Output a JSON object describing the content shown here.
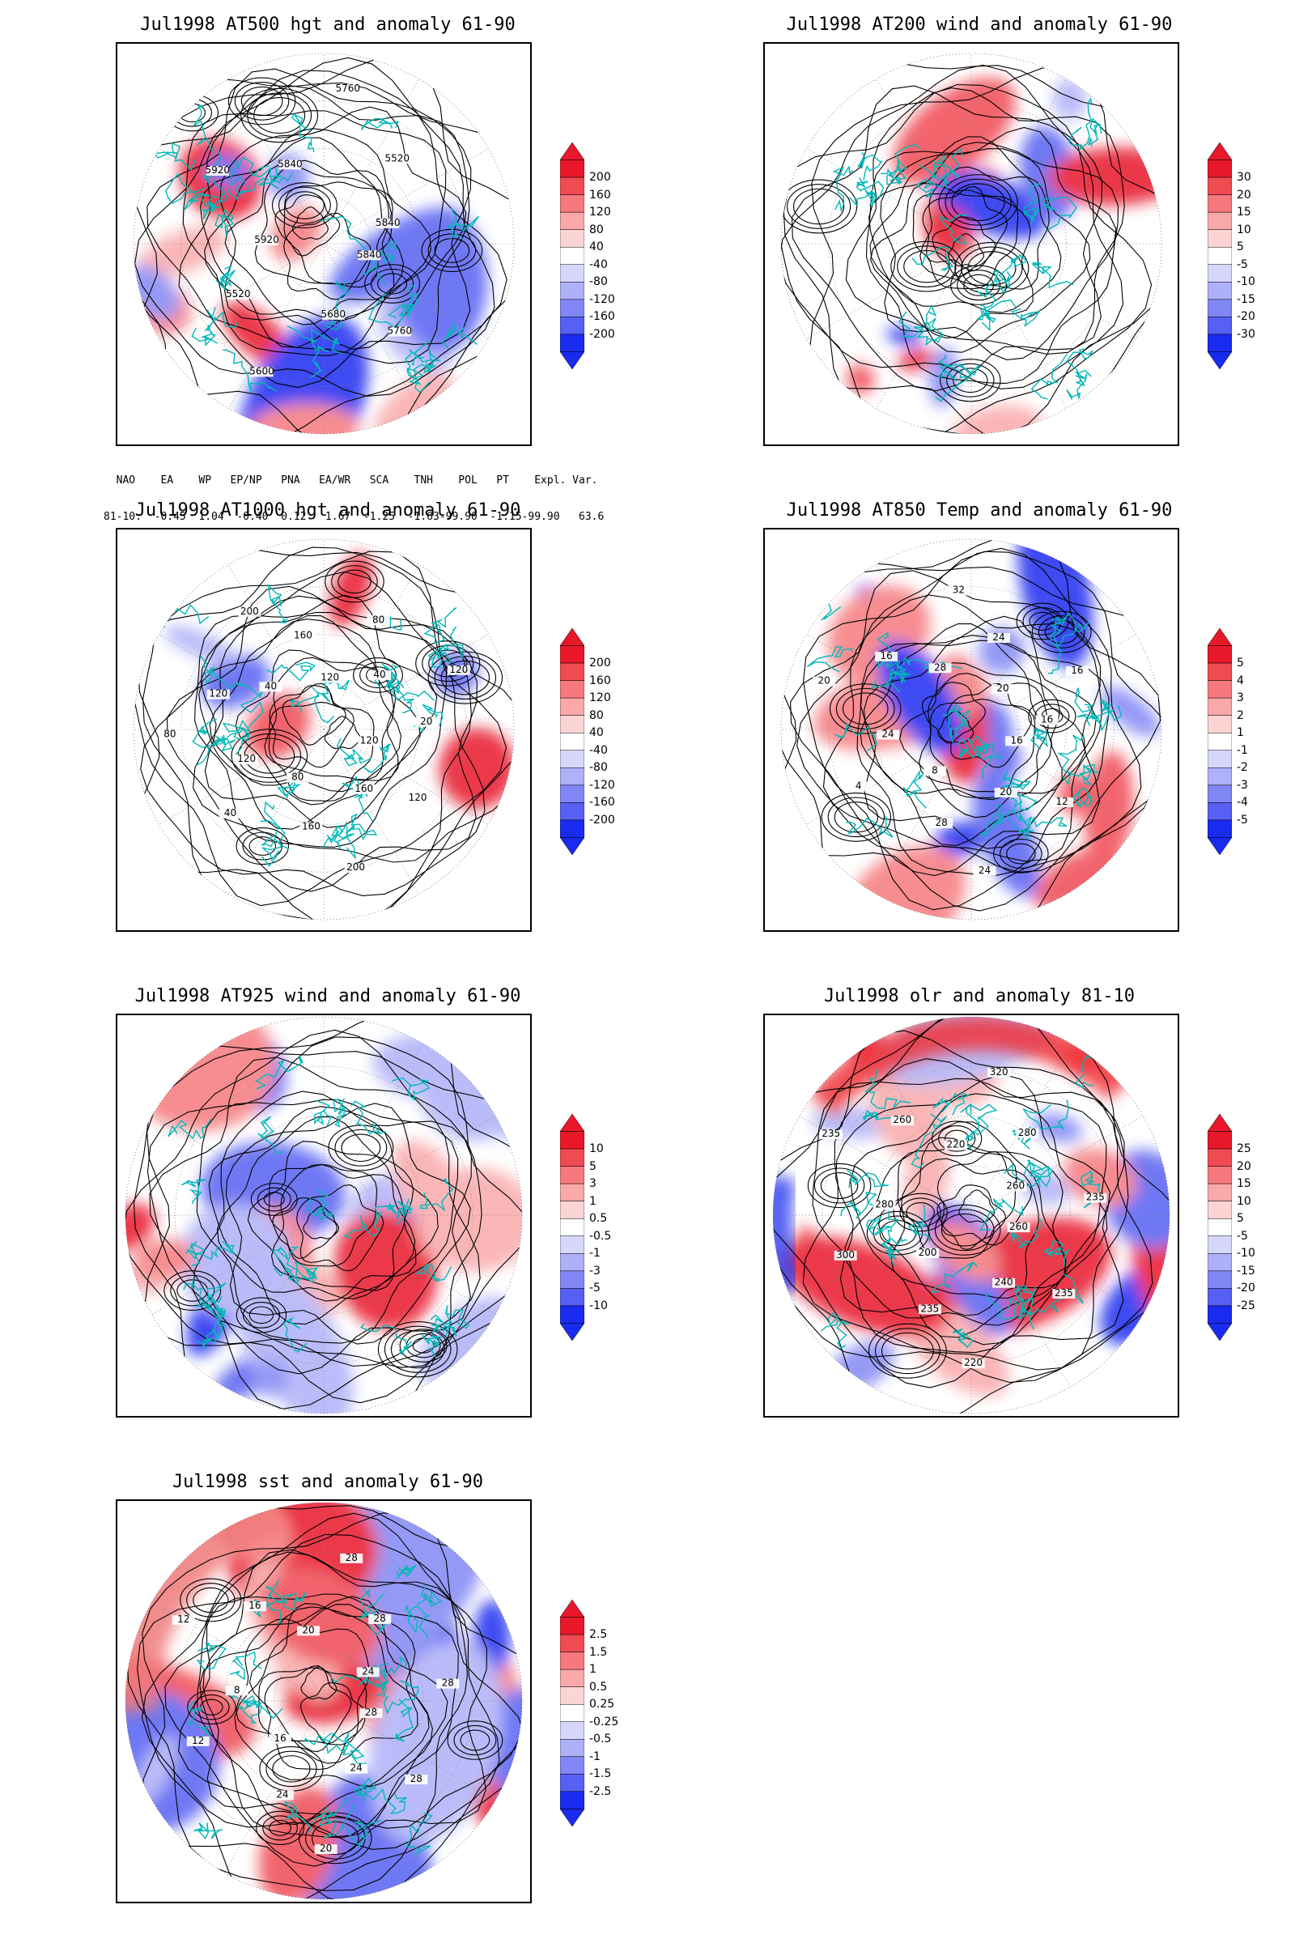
{
  "panels": [
    {
      "id": "p1",
      "title": "Jul1998 AT500 hgt and anomaly 61-90",
      "colorbar": [
        "200",
        "160",
        "120",
        "80",
        "40",
        "-40",
        "-80",
        "-120",
        "-160",
        "-200"
      ],
      "contour_labels": [
        "5840",
        "5760",
        "5680",
        "5600",
        "5520",
        "5920",
        "5920",
        "5840",
        "5760",
        "5520",
        "5840"
      ]
    },
    {
      "id": "p2",
      "title": "Jul1998 AT200 wind and anomaly 61-90",
      "colorbar": [
        "30",
        "20",
        "15",
        "10",
        "5",
        "-5",
        "-10",
        "-15",
        "-20",
        "-30"
      ],
      "contour_labels": []
    },
    {
      "id": "p3",
      "title": "Jul1998 AT1000 hgt and anomaly 61-90",
      "colorbar": [
        "200",
        "160",
        "120",
        "80",
        "40",
        "-40",
        "-80",
        "-120",
        "-160",
        "-200"
      ],
      "contour_labels": [
        "120",
        "120",
        "160",
        "200",
        "160",
        "80",
        "40",
        "120",
        "80",
        "120",
        "40",
        "200",
        "160",
        "120",
        "80",
        "40",
        "120",
        "20"
      ]
    },
    {
      "id": "p4",
      "title": "Jul1998 AT850 Temp and anomaly 61-90",
      "colorbar": [
        "5",
        "4",
        "3",
        "2",
        "1",
        "-1",
        "-2",
        "-3",
        "-4",
        "-5"
      ],
      "contour_labels": [
        "16",
        "12",
        "20",
        "24",
        "28",
        "8",
        "4",
        "24",
        "20",
        "16",
        "28",
        "32",
        "24",
        "20",
        "16",
        "16"
      ]
    },
    {
      "id": "p5",
      "title": "Jul1998 AT925 wind and anomaly 61-90",
      "colorbar": [
        "10",
        "5",
        "3",
        "1",
        "0.5",
        "-0.5",
        "-1",
        "-3",
        "-5",
        "-10"
      ],
      "contour_labels": []
    },
    {
      "id": "p6",
      "title": "Jul1998 olr and anomaly 81-10",
      "colorbar": [
        "25",
        "20",
        "15",
        "10",
        "5",
        "-5",
        "-10",
        "-15",
        "-20",
        "-25"
      ],
      "contour_labels": [
        "260",
        "235",
        "240",
        "220",
        "235",
        "200",
        "300",
        "280",
        "235",
        "260",
        "220",
        "320",
        "280",
        "260",
        "235"
      ]
    },
    {
      "id": "p7",
      "title": "Jul1998 sst and anomaly 61-90",
      "colorbar": [
        "2.5",
        "1.5",
        "1",
        "0.5",
        "0.25",
        "-0.25",
        "-0.5",
        "-1",
        "-1.5",
        "-2.5"
      ],
      "contour_labels": [
        "28",
        "28",
        "24",
        "20",
        "24",
        "16",
        "12",
        "8",
        "12",
        "16",
        "20",
        "28",
        "28",
        "24",
        "28"
      ]
    }
  ],
  "indices": {
    "header": "  NAO    EA    WP   EP/NP   PNA   EA/WR   SCA    TNH    POL   PT    Expl. Var.",
    "row": "81-10:  -0.45  1.04  -0.40  0.12   1.67  -1.25  -1.63-99.90  -1.15-99.90   63.6"
  },
  "colors": {
    "positive": "#e8182a",
    "negative": "#1a2bf0",
    "contour": "#000000",
    "coast": "#00b8b8"
  }
}
